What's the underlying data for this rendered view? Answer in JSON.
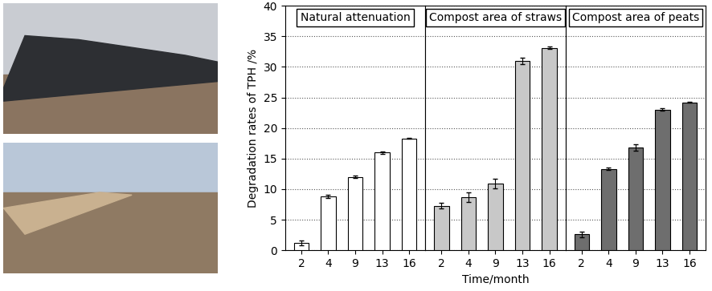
{
  "chart_data": [
    {
      "type": "bar",
      "title": "Natural attenuation",
      "ylabel": "Degradation rates of TPH /%",
      "categories": [
        "2",
        "4",
        "9",
        "13",
        "16"
      ],
      "values": [
        1.2,
        8.8,
        12.0,
        16.0,
        18.3
      ],
      "errors": [
        0.4,
        0.3,
        0.2,
        0.2,
        0.1
      ],
      "color": "#ffffff",
      "ylim": [
        0,
        40
      ],
      "yticks": [
        0,
        5,
        10,
        15,
        20,
        25,
        30,
        35,
        40
      ],
      "grid": true
    },
    {
      "type": "bar",
      "title": "Compost area of straws",
      "xlabel": "Time/month",
      "categories": [
        "2",
        "4",
        "9",
        "13",
        "16"
      ],
      "values": [
        7.3,
        8.7,
        10.9,
        31.0,
        33.1
      ],
      "errors": [
        0.5,
        0.8,
        0.8,
        0.5,
        0.2
      ],
      "color": "#c8c8c8",
      "ylim": [
        0,
        40
      ],
      "yticks": [
        0,
        5,
        10,
        15,
        20,
        25,
        30,
        35,
        40
      ],
      "grid": true,
      "tick_labels": "x"
    },
    {
      "type": "bar",
      "title": "Compost area of peats",
      "categories": [
        "2",
        "4",
        "9",
        "13",
        "16"
      ],
      "values": [
        2.6,
        13.3,
        16.8,
        23.0,
        24.2
      ],
      "errors": [
        0.5,
        0.2,
        0.5,
        0.2,
        0.1
      ],
      "color": "#6e6e6e",
      "ylim": [
        0,
        40
      ],
      "yticks": [
        0,
        5,
        10,
        15,
        20,
        25,
        30,
        35,
        40
      ],
      "grid": true,
      "tick_labels": "x"
    }
  ]
}
